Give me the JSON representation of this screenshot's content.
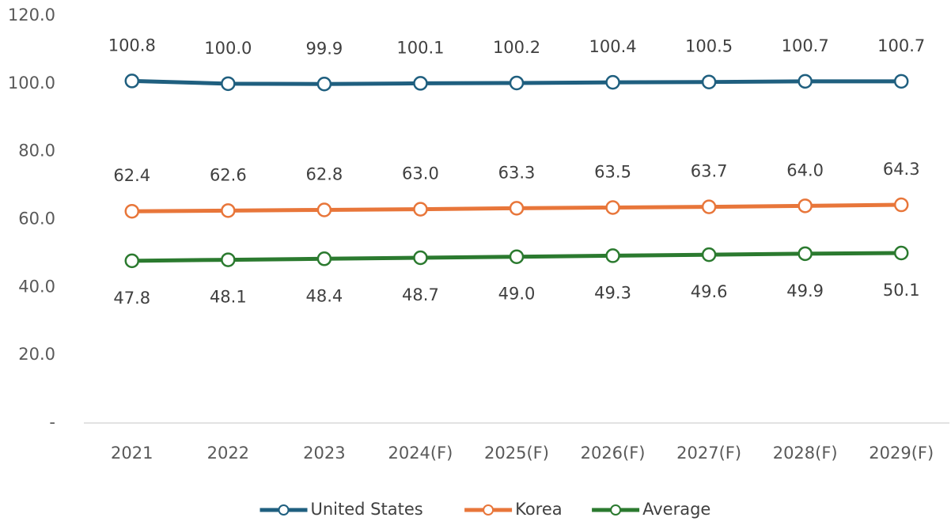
{
  "chart_data": {
    "type": "line",
    "categories": [
      "2021",
      "2022",
      "2023",
      "2024(F)",
      "2025(F)",
      "2026(F)",
      "2027(F)",
      "2028(F)",
      "2029(F)"
    ],
    "series": [
      {
        "name": "United States",
        "color": "#1f5f7f",
        "values": [
          100.8,
          100.0,
          99.9,
          100.1,
          100.2,
          100.4,
          100.5,
          100.7,
          100.7
        ],
        "value_labels": [
          "100.8",
          "100.0",
          "99.9",
          "100.1",
          "100.2",
          "100.4",
          "100.5",
          "100.7",
          "100.7"
        ]
      },
      {
        "name": "Korea",
        "color": "#e8763a",
        "values": [
          62.4,
          62.6,
          62.8,
          63.0,
          63.3,
          63.5,
          63.7,
          64.0,
          64.3
        ],
        "value_labels": [
          "62.4",
          "62.6",
          "62.8",
          "63.0",
          "63.3",
          "63.5",
          "63.7",
          "64.0",
          "64.3"
        ]
      },
      {
        "name": "Average",
        "color": "#2b7a2f",
        "values": [
          47.8,
          48.1,
          48.4,
          48.7,
          49.0,
          49.3,
          49.6,
          49.9,
          50.1
        ],
        "value_labels": [
          "47.8",
          "48.1",
          "48.4",
          "48.7",
          "49.0",
          "49.3",
          "49.6",
          "49.9",
          "50.1"
        ]
      }
    ],
    "ylim": [
      0,
      120
    ],
    "yticks": [
      {
        "value": 0,
        "label": "-"
      },
      {
        "value": 20,
        "label": "20.0"
      },
      {
        "value": 40,
        "label": "40.0"
      },
      {
        "value": 60,
        "label": "60.0"
      },
      {
        "value": 80,
        "label": "80.0"
      },
      {
        "value": 100,
        "label": "100.0"
      },
      {
        "value": 120,
        "label": "120.0"
      }
    ],
    "grid": false,
    "legend": "bottom"
  }
}
